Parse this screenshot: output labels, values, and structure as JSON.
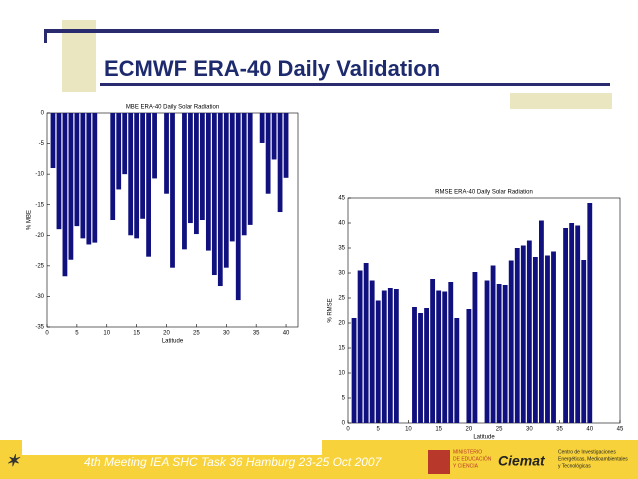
{
  "slide": {
    "title": "ECMWF ERA-40 Daily Validation",
    "footer": "4th Meeting IEA SHC Task 36  Hamburg 23-25 Oct 2007",
    "ministry": [
      "MINISTERIO",
      "DE EDUCACIÓN",
      "Y CIENCIA"
    ],
    "ciemat": "Ciemat",
    "centro": [
      "Centro de Investigaciones",
      "Energéticas, Medioambientales",
      "y Tecnológicas"
    ]
  },
  "chart_data": [
    {
      "type": "bar",
      "title": "MBE ERA-40 Daily Solar Radiation",
      "x_label": "Latitude",
      "y_label": "% MBE",
      "color": "#10107e",
      "x": [
        1,
        2,
        3,
        4,
        5,
        6,
        7,
        8,
        11,
        12,
        13,
        14,
        15,
        16,
        17,
        18,
        20,
        21,
        23,
        24,
        25,
        26,
        27,
        28,
        29,
        30,
        31,
        32,
        33,
        34,
        36,
        37,
        38,
        39,
        40
      ],
      "values": [
        -9,
        -19,
        -26.7,
        -24,
        -18.5,
        -20.5,
        -21.5,
        -21.2,
        -17.5,
        -12.5,
        -10,
        -20,
        -20.5,
        -17.3,
        -23.5,
        -10.7,
        -13.2,
        -25.3,
        -22.3,
        -18,
        -19.8,
        -17.5,
        -22.5,
        -26.5,
        -28.3,
        -25.3,
        -21,
        -30.6,
        -20,
        -18.3,
        -4.9,
        -13.2,
        -7.6,
        -16.2,
        -10.6
      ],
      "xlim": [
        0,
        42
      ],
      "xticks": [
        0,
        5,
        10,
        15,
        20,
        25,
        30,
        35,
        40
      ],
      "ylim": [
        -35,
        0
      ],
      "yticks": [
        0,
        -5,
        -10,
        -15,
        -20,
        -25,
        -30,
        -35
      ]
    },
    {
      "type": "bar",
      "title": "RMSE ERA-40 Daily Solar Radiation",
      "x_label": "Latitude",
      "y_label": "% RMSE",
      "color": "#10107e",
      "x": [
        1,
        2,
        3,
        4,
        5,
        6,
        7,
        8,
        11,
        12,
        13,
        14,
        15,
        16,
        17,
        18,
        20,
        21,
        23,
        24,
        25,
        26,
        27,
        28,
        29,
        30,
        31,
        32,
        33,
        34,
        36,
        37,
        38,
        39,
        40
      ],
      "values": [
        21,
        30.5,
        32,
        28.5,
        24.5,
        26.5,
        27,
        26.8,
        23.2,
        22,
        23,
        28.8,
        26.5,
        26.3,
        28.2,
        21,
        22.8,
        30.2,
        28.5,
        31.5,
        27.8,
        27.6,
        32.5,
        35,
        35.5,
        36.5,
        33.2,
        40.5,
        33.5,
        34.3,
        39,
        40,
        39.5,
        32.6,
        44
      ],
      "xlim": [
        0,
        45
      ],
      "xticks": [
        0,
        5,
        10,
        15,
        20,
        25,
        30,
        35,
        40,
        45
      ],
      "ylim": [
        0,
        45
      ],
      "yticks": [
        0,
        5,
        10,
        15,
        20,
        25,
        30,
        35,
        40,
        45
      ]
    }
  ]
}
